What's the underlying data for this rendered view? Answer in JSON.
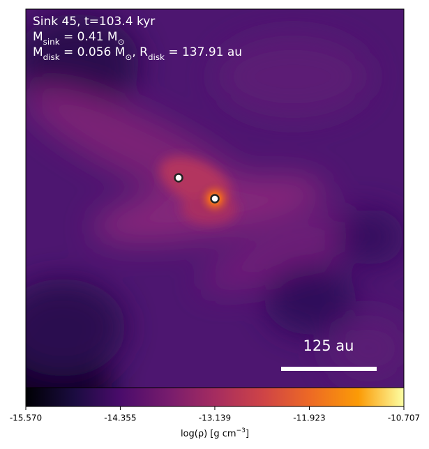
{
  "chart_data": {
    "type": "image",
    "annotations": [
      [
        {
          "text": "Sink 45, t=103.4 kyr"
        }
      ],
      [
        {
          "text": "M"
        },
        {
          "text": "sink",
          "sub": true
        },
        {
          "text": " = 0.41 M"
        },
        {
          "text": "⊙",
          "sub": true
        }
      ],
      [
        {
          "text": "M"
        },
        {
          "text": "disk",
          "sub": true
        },
        {
          "text": " = 0.056 M"
        },
        {
          "text": "⊙",
          "sub": true
        },
        {
          "text": ", R"
        },
        {
          "text": "disk",
          "sub": true
        },
        {
          "text": " = 137.91 au"
        }
      ]
    ],
    "scale_bar_label": "125 au",
    "colorbar": {
      "label": [
        {
          "text": "log(ρ) [g cm"
        },
        {
          "text": "−3",
          "sup": true
        },
        {
          "text": "]"
        }
      ],
      "colormap": "inferno",
      "clim": [
        -15.57,
        -10.707
      ],
      "ticks": [
        {
          "value": -15.57,
          "label": "-15.570"
        },
        -14.355,
        -13.139,
        -11.923,
        -10.707
      ]
    }
  }
}
